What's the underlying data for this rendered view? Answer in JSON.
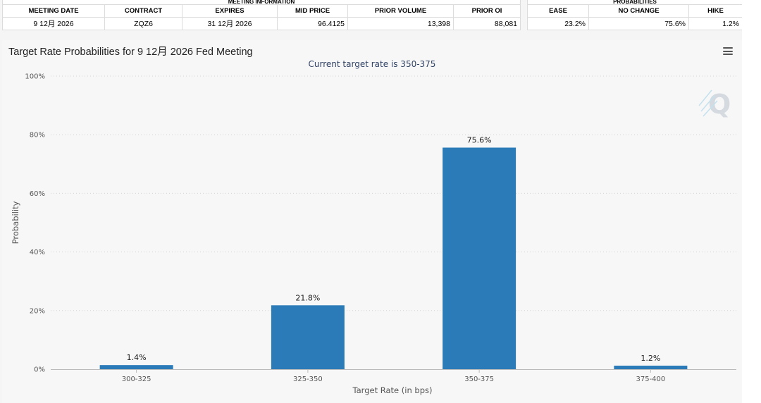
{
  "meeting_info": {
    "group_label": "MEETING INFORMATION",
    "headers": [
      "MEETING DATE",
      "CONTRACT",
      "EXPIRES",
      "MID PRICE",
      "PRIOR VOLUME",
      "PRIOR OI"
    ],
    "row": [
      "9 12月 2026",
      "ZQZ6",
      "31 12月 2026",
      "96.4125",
      "13,398",
      "88,081"
    ]
  },
  "probabilities": {
    "group_label": "PROBABILITIES",
    "headers": [
      "EASE",
      "NO CHANGE",
      "HIKE"
    ],
    "row": [
      "23.2%",
      "75.6%",
      "1.2%"
    ]
  },
  "chart": {
    "title": "Target Rate Probabilities for 9 12月 2026 Fed Meeting",
    "menu_icon": "hamburger-menu-icon",
    "watermark_icon": "q-logo-icon"
  },
  "chart_data": {
    "type": "bar",
    "title": "Target Rate Probabilities for 9 12月 2026 Fed Meeting",
    "subtitle": "Current target rate is 350-375",
    "xlabel": "Target Rate (in bps)",
    "ylabel": "Probability",
    "categories": [
      "300-325",
      "325-350",
      "350-375",
      "375-400"
    ],
    "values": [
      1.4,
      21.8,
      75.6,
      1.2
    ],
    "data_labels": [
      "1.4%",
      "21.8%",
      "75.6%",
      "1.2%"
    ],
    "ylim": [
      0,
      100
    ],
    "yticks": [
      0,
      20,
      40,
      60,
      80,
      100
    ],
    "ytick_labels": [
      "0%",
      "20%",
      "40%",
      "60%",
      "80%",
      "100%"
    ],
    "grid": true,
    "bar_color": "#2b7bb9"
  }
}
